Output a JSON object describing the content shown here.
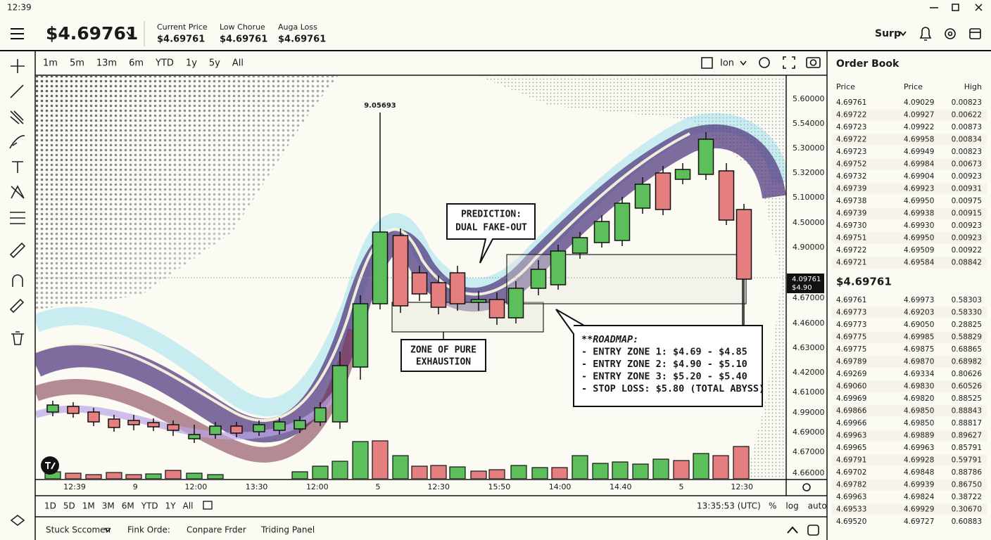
{
  "status_bar": {
    "time": "12:39"
  },
  "header": {
    "price": "$4.69761",
    "stats": [
      {
        "label": "Current Price",
        "value": "$4.69761"
      },
      {
        "label": "Low Chorue",
        "value": "$4.69761"
      },
      {
        "label": "Auga Loss",
        "value": "$4.69761"
      }
    ],
    "account": "Surp"
  },
  "chart_toolbar": {
    "intervals": [
      "1m",
      "5m",
      "13m",
      "6m",
      "YTD",
      "1y",
      "5y",
      "All"
    ],
    "toggle": "Ion"
  },
  "chart": {
    "peak_label": "9.05693",
    "prediction": [
      "PREDICTION:",
      "DUAL FAKE-OUT"
    ],
    "zone_label": [
      "ZONE OF PURE",
      "EXHAUSTION"
    ],
    "roadmap": [
      "**ROADMAP:",
      "- ENTRY ZONE 1: $4.69 - $4.85",
      "- ENTRY ZONE 2: $4.90 - $5.10",
      "- ENTRY ZONE 3: $5.20 - $5.40",
      "- STOP LOSS: $5.80 (TOTAL ABYSS)"
    ],
    "price_axis": [
      "5.60000",
      "5.54000",
      "5.30000",
      "5.32000",
      "5.10000",
      "4.50000",
      "4.90000",
      "4.67000",
      "4.46000",
      "4.63000",
      "4.42000",
      "4.61000",
      "4.99000",
      "4.69000",
      "4.67000",
      "4.66000"
    ],
    "price_tag": [
      "4.09761",
      "$4.90"
    ],
    "time_axis": [
      "12:39",
      "9",
      "12:00",
      "13:30",
      "12:00",
      "5",
      "12:30",
      "15:50",
      "14:00",
      "14.40",
      "5",
      "12:30"
    ]
  },
  "range_bar": {
    "ranges": [
      "1D",
      "5D",
      "1M",
      "3M",
      "6M",
      "YTD",
      "1Y",
      "All"
    ],
    "clock": "13:35:53 (UTC)",
    "options": [
      "%",
      "log",
      "auto"
    ]
  },
  "bottom_tabs": [
    "Stuck Sccomen",
    "Fink Orde:",
    "Conpare Frder",
    "Triding Panel"
  ],
  "order_book": {
    "title": "Order Book",
    "columns": [
      "Price",
      "Price",
      "High"
    ],
    "asks": [
      [
        "4.69761",
        "4.09029",
        "0.00823"
      ],
      [
        "4.69722",
        "4.09927",
        "0.00622"
      ],
      [
        "4.69723",
        "4.09922",
        "0.00873"
      ],
      [
        "4.69722",
        "4.69958",
        "0.00834"
      ],
      [
        "4.69723",
        "4.69949",
        "0.00823"
      ],
      [
        "4.69752",
        "4.69984",
        "0.00673"
      ],
      [
        "4.69732",
        "4.69904",
        "0.00923"
      ],
      [
        "4.69739",
        "4.69923",
        "0.00931"
      ],
      [
        "4.69738",
        "4.69950",
        "0.00975"
      ],
      [
        "4.69739",
        "4.69938",
        "0.00915"
      ],
      [
        "4.69730",
        "4.69930",
        "0.00923"
      ],
      [
        "4.69751",
        "4.69950",
        "0.00923"
      ],
      [
        "4.69722",
        "4.69509",
        "0.00922"
      ],
      [
        "4.69721",
        "4.69584",
        "0.08842"
      ]
    ],
    "last_price": "$4.69761",
    "bids": [
      [
        "4.69761",
        "4.69973",
        "0.58303"
      ],
      [
        "4.69773",
        "4.69203",
        "0.58330"
      ],
      [
        "4.69773",
        "4.69050",
        "0.28825"
      ],
      [
        "4.69775",
        "4.69985",
        "0.58829"
      ],
      [
        "4.69775",
        "4.69875",
        "0.68865"
      ],
      [
        "4.69789",
        "4.69870",
        "0.68982"
      ],
      [
        "4.69269",
        "4.69334",
        "0.80626"
      ],
      [
        "4.69060",
        "4.69830",
        "0.60526"
      ],
      [
        "4.69969",
        "4.69820",
        "0.88525"
      ],
      [
        "4.69866",
        "4.69850",
        "0.88843"
      ],
      [
        "4.69966",
        "4.69850",
        "0.88817"
      ],
      [
        "4.69963",
        "4.69889",
        "0.89627"
      ],
      [
        "4.69965",
        "4.69963",
        "0.85791"
      ],
      [
        "4.69791",
        "4.69928",
        "0.59791"
      ],
      [
        "4.69702",
        "4.69848",
        "0.88786"
      ],
      [
        "4.69782",
        "4.69939",
        "0.86750"
      ],
      [
        "4.69963",
        "4.69824",
        "0.38722"
      ],
      [
        "4.69533",
        "4.69929",
        "0.30670"
      ],
      [
        "4.69520",
        "4.69727",
        "0.60883"
      ]
    ]
  }
}
